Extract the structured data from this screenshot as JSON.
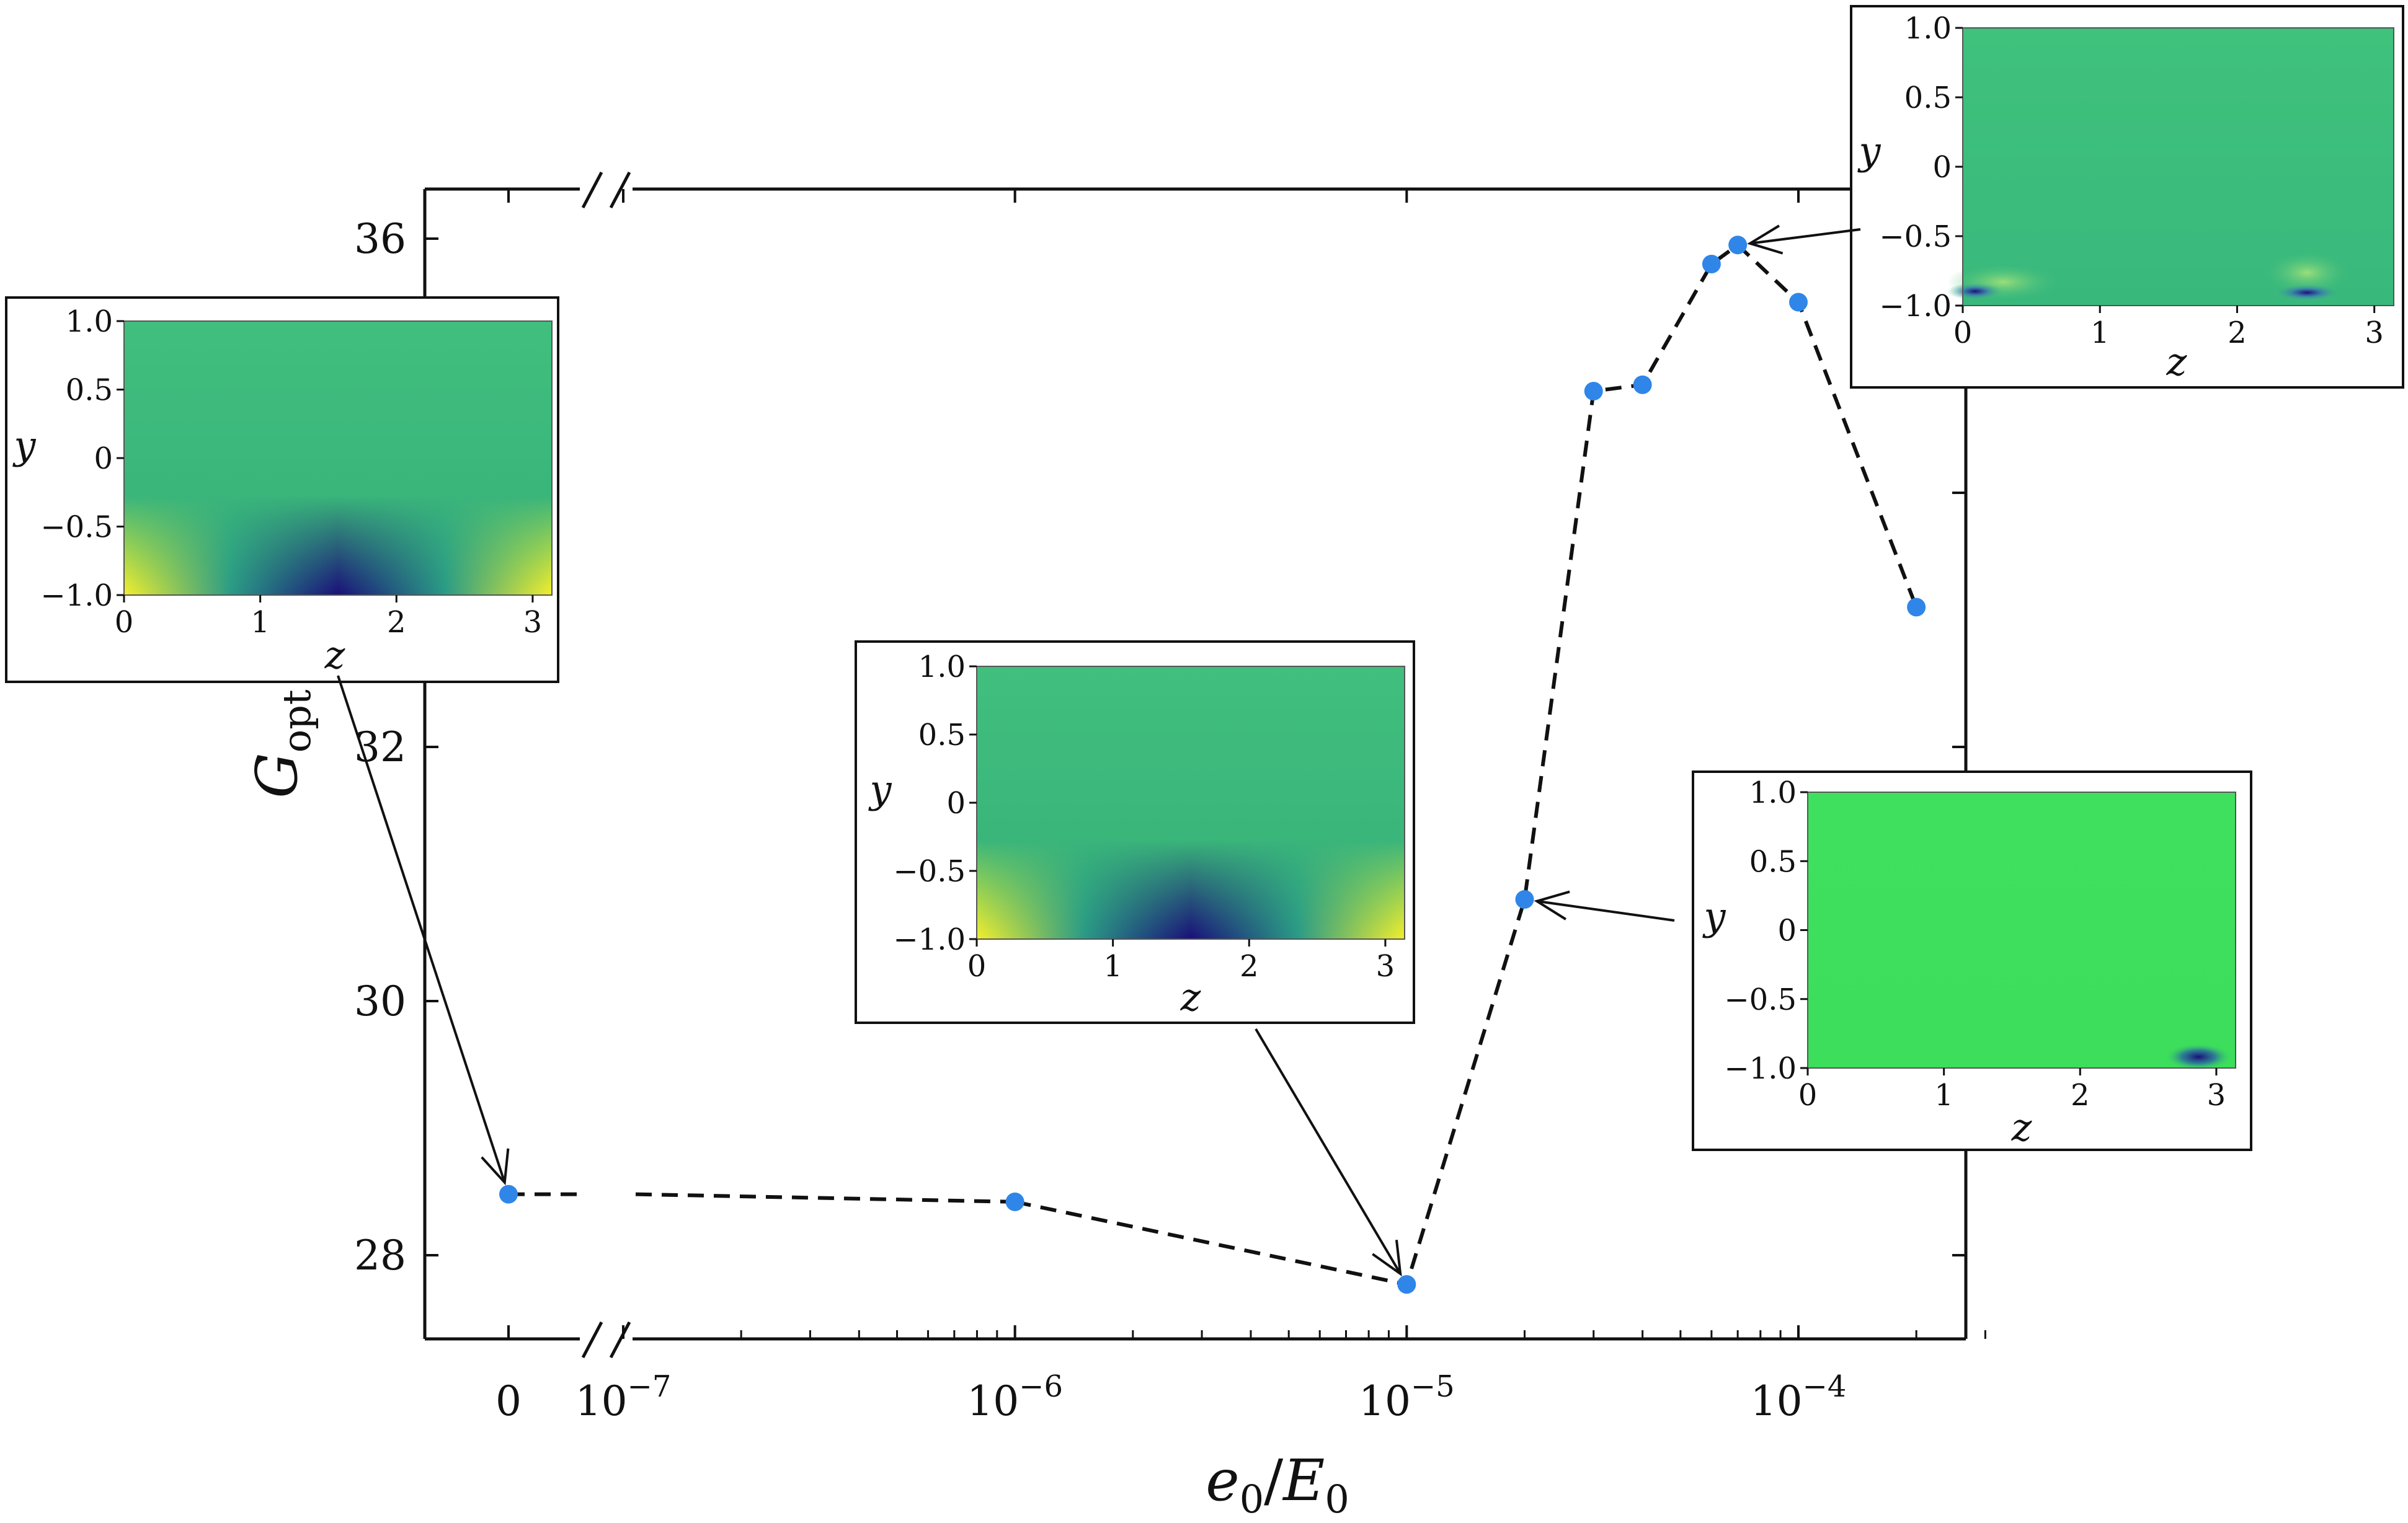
{
  "chart_data": {
    "type": "line",
    "xlabel": {
      "base": "e",
      "sub1": "0",
      "slash": "/",
      "base2": "E",
      "sub2": "0"
    },
    "ylabel": {
      "base": "G",
      "sub": "opt"
    },
    "x_scale": "log (with broken axis at 0)",
    "x_ticks": [
      {
        "value": 0,
        "mantissa": "0",
        "exp": ""
      },
      {
        "value": 1e-07,
        "mantissa": "10",
        "exp": "−7"
      },
      {
        "value": 1e-06,
        "mantissa": "10",
        "exp": "−6"
      },
      {
        "value": 1e-05,
        "mantissa": "10",
        "exp": "−5"
      },
      {
        "value": 0.0001,
        "mantissa": "10",
        "exp": "−4"
      }
    ],
    "y_ticks": [
      {
        "value": 28,
        "label": "28"
      },
      {
        "value": 30,
        "label": "30"
      },
      {
        "value": 32,
        "label": "32"
      },
      {
        "value": 36,
        "label": "36"
      }
    ],
    "ylim": [
      27.4,
      36.4
    ],
    "series": [
      {
        "points": [
          {
            "x": 0,
            "y": 28.48
          },
          {
            "x": 1e-06,
            "y": 28.42
          },
          {
            "x": 1e-05,
            "y": 27.77
          },
          {
            "x": 2e-05,
            "y": 30.8
          },
          {
            "x": 3e-05,
            "y": 34.8
          },
          {
            "x": 4e-05,
            "y": 34.85
          },
          {
            "x": 6e-05,
            "y": 35.8
          },
          {
            "x": 7e-05,
            "y": 35.95
          },
          {
            "x": 0.0001,
            "y": 35.5
          },
          {
            "x": 0.0002,
            "y": 33.1
          }
        ]
      }
    ],
    "marker_color": "#2f86e8",
    "line_style": "dashed",
    "insets": [
      {
        "points_to_x": 0,
        "points_to_y": 28.48,
        "xlabel": "z",
        "ylabel": "y",
        "x_ticks": [
          "0",
          "1",
          "2",
          "3"
        ],
        "y_ticks": [
          "1.0",
          "0.5",
          "0",
          "−0.5",
          "−1.0"
        ],
        "pattern": "periodic-wall-streaks"
      },
      {
        "points_to_x": 1e-05,
        "points_to_y": 27.77,
        "xlabel": "z",
        "ylabel": "y",
        "x_ticks": [
          "0",
          "1",
          "2",
          "3"
        ],
        "y_ticks": [
          "1.0",
          "0.5",
          "0",
          "−0.5",
          "−1.0"
        ],
        "pattern": "periodic-wall-streaks"
      },
      {
        "points_to_x": 2e-05,
        "points_to_y": 30.8,
        "xlabel": "z",
        "ylabel": "y",
        "x_ticks": [
          "0",
          "1",
          "2",
          "3"
        ],
        "y_ticks": [
          "1.0",
          "0.5",
          "0",
          "−0.5",
          "−1.0"
        ],
        "pattern": "localized-wall-spot"
      },
      {
        "points_to_x": 7e-05,
        "points_to_y": 35.95,
        "xlabel": "z",
        "ylabel": "y",
        "x_ticks": [
          "0",
          "1",
          "2",
          "3"
        ],
        "y_ticks": [
          "1.0",
          "0.5",
          "0",
          "−0.5",
          "−1.0"
        ],
        "pattern": "two-wall-spots"
      }
    ],
    "colormap": {
      "base": "#3dbb7a",
      "low": "#1a0f7a",
      "high": "#f6ef2b"
    }
  }
}
